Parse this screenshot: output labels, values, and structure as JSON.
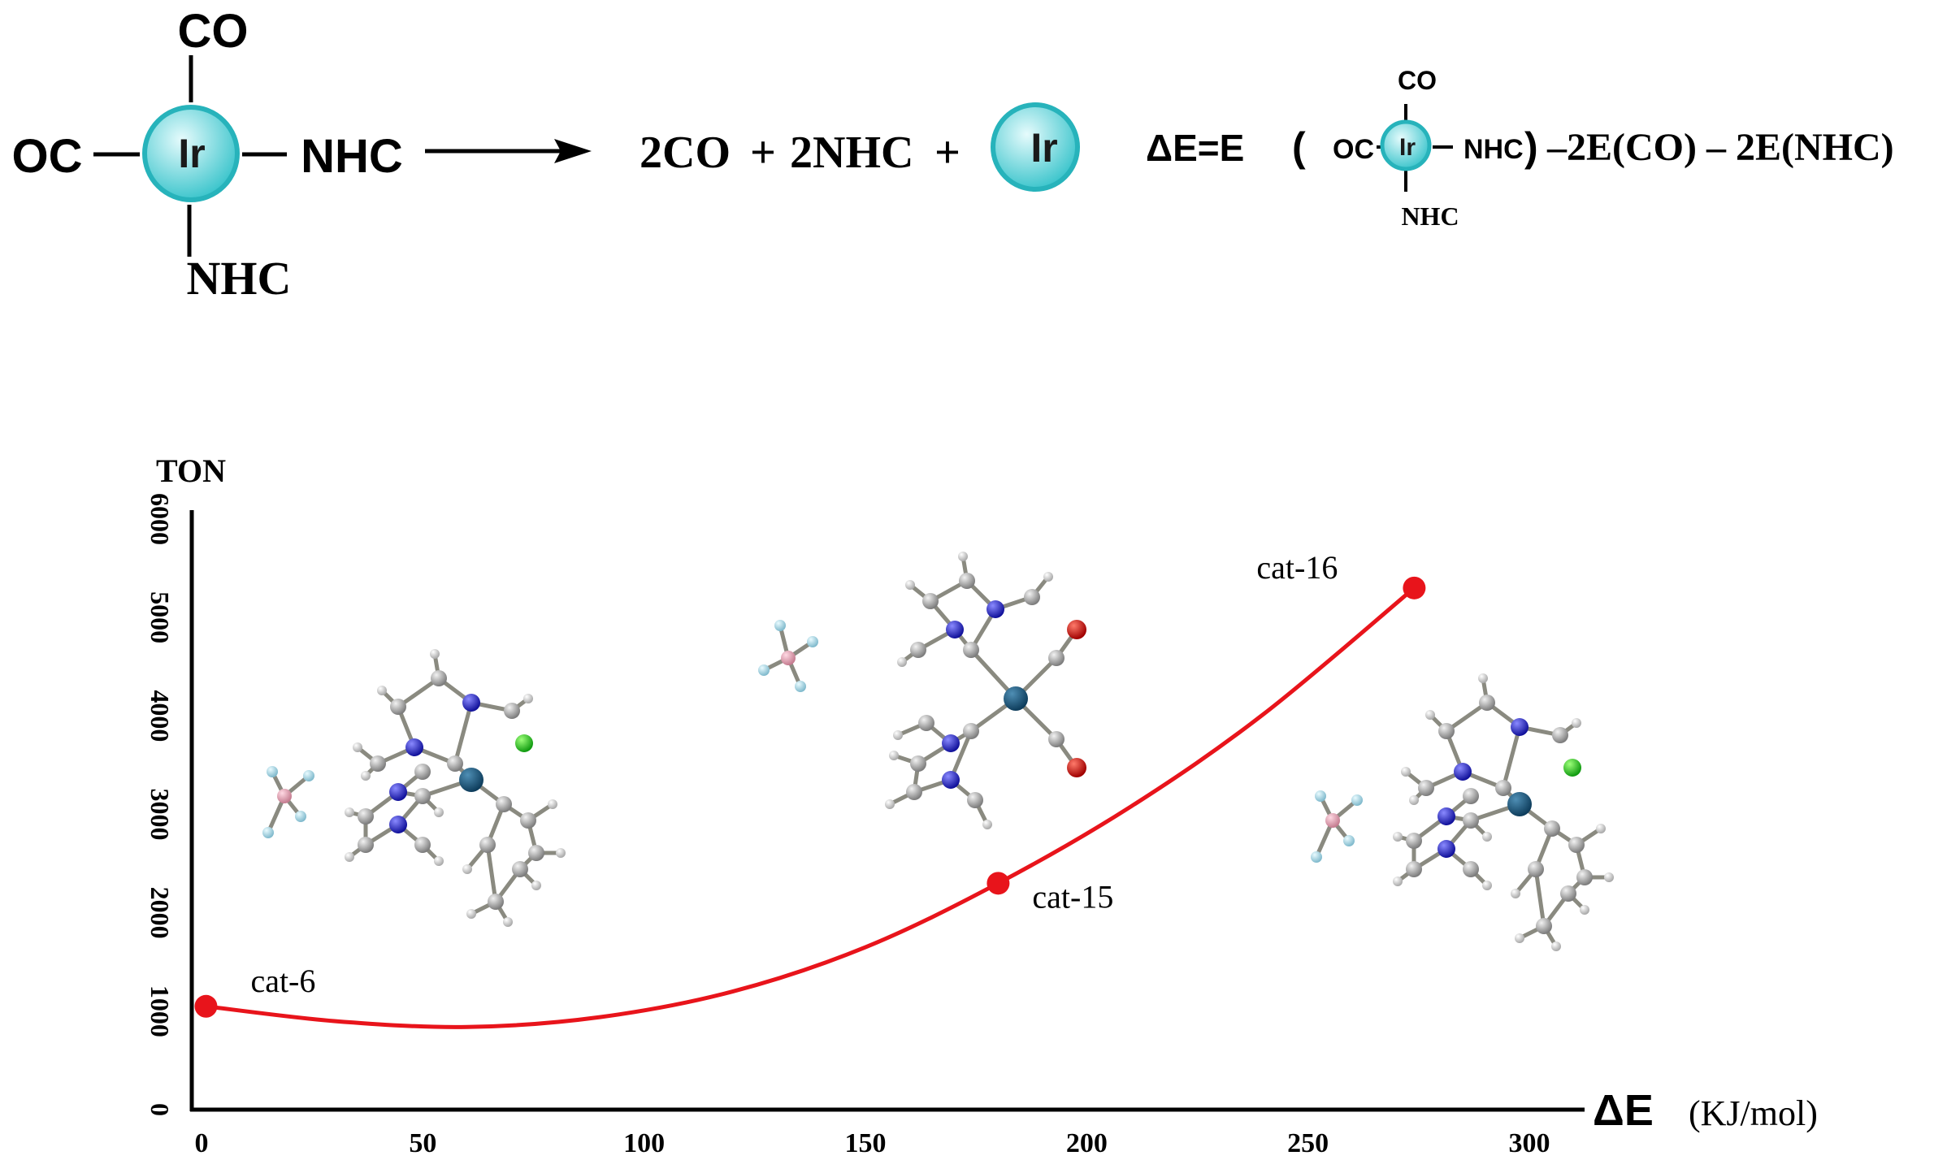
{
  "scheme": {
    "complex": {
      "metal": "Ir",
      "top": "CO",
      "left": "OC",
      "right": "NHC",
      "bottom": "NHC"
    },
    "products": {
      "co": "2CO",
      "plus1": "+",
      "nhc": "2NHC",
      "plus2": "+",
      "metal": "Ir"
    },
    "equation": {
      "lhs": "ΔE=E",
      "open": "(",
      "oc": "OC",
      "metal": "Ir",
      "nhc_right": "NHC",
      "close": ")",
      "co_top": "CO",
      "nhc_bottom": "NHC",
      "rest": "–2E(CO) – 2E(NHC)"
    }
  },
  "chart_data": {
    "type": "line",
    "title": "",
    "xlabel": "ΔE",
    "xunit": "(KJ/mol)",
    "ylabel": "TON",
    "xlim": [
      0,
      300
    ],
    "ylim": [
      0,
      6000
    ],
    "xticks": [
      "0",
      "50",
      "100",
      "150",
      "200",
      "250",
      "300"
    ],
    "yticks": [
      "0",
      "1000",
      "2000",
      "3000",
      "4000",
      "5000",
      "6000"
    ],
    "grid": false,
    "points": [
      {
        "label": "cat-6",
        "x": 1,
        "y": 1050
      },
      {
        "label": "cat-15",
        "x": 180,
        "y": 2300
      },
      {
        "label": "cat-16",
        "x": 274,
        "y": 5300
      }
    ],
    "curve": [
      {
        "x": 1,
        "y": 1050
      },
      {
        "x": 30,
        "y": 900
      },
      {
        "x": 60,
        "y": 840
      },
      {
        "x": 90,
        "y": 940
      },
      {
        "x": 120,
        "y": 1200
      },
      {
        "x": 150,
        "y": 1650
      },
      {
        "x": 180,
        "y": 2300
      },
      {
        "x": 210,
        "y": 3080
      },
      {
        "x": 240,
        "y": 4020
      },
      {
        "x": 274,
        "y": 5300
      }
    ],
    "colors": {
      "curve": "#e8141b",
      "points": "#e8141b",
      "axis": "#000000",
      "metal_ball": "#3fc6cd"
    }
  },
  "molecules": [
    {
      "name": "cat-6 structure",
      "halide": "Cl",
      "anion": "BF4"
    },
    {
      "name": "cat-15 structure",
      "anion": "BF4",
      "ligands": "2 CO"
    },
    {
      "name": "cat-16 structure",
      "halide": "Cl",
      "anion": "BF4"
    }
  ]
}
